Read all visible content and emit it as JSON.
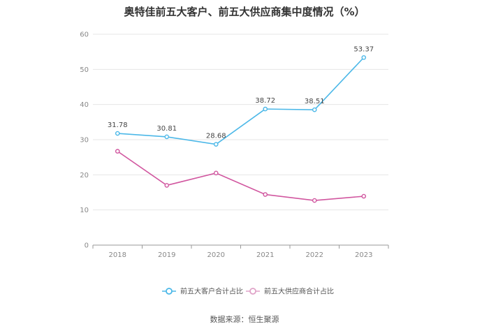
{
  "title": "奥特佳前五大客户、前五大供应商集中度情况（%）",
  "source": "数据来源：恒生聚源",
  "chart_data": {
    "type": "line",
    "categories": [
      "2018",
      "2019",
      "2020",
      "2021",
      "2022",
      "2023"
    ],
    "ylim": [
      0,
      60
    ],
    "yticks": [
      0,
      10,
      20,
      30,
      40,
      50,
      60
    ],
    "grid": true,
    "legend_position": "bottom",
    "series": [
      {
        "name": "前五大客户合计占比",
        "color": "#4cb8e8",
        "values": [
          31.78,
          30.81,
          28.68,
          38.72,
          38.51,
          53.37
        ],
        "labels": [
          "31.78",
          "30.81",
          "28.68",
          "38.72",
          "38.51",
          "53.37"
        ]
      },
      {
        "name": "前五大供应商合计占比",
        "color": "#d1569f",
        "values": [
          26.7,
          17.0,
          20.5,
          14.4,
          12.7,
          13.9
        ]
      }
    ]
  }
}
